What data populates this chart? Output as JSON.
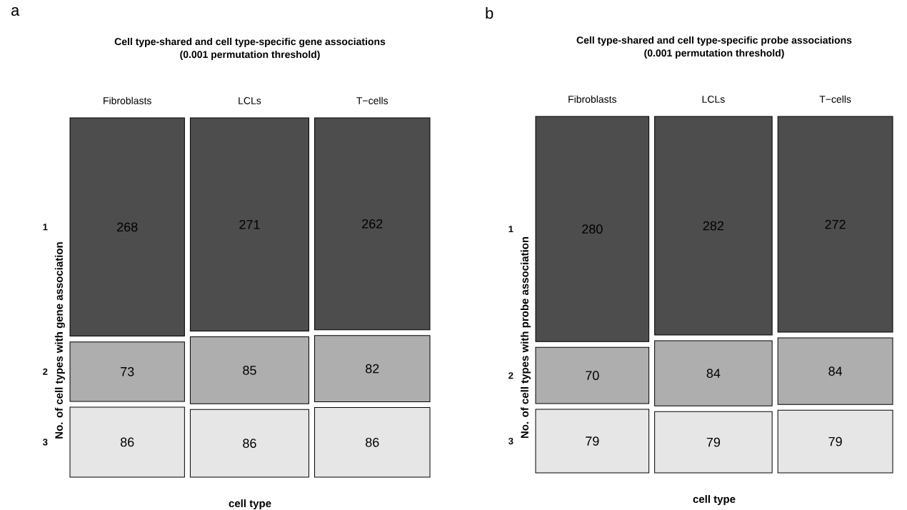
{
  "chart_data": [
    {
      "type": "other",
      "title": "Cell type-shared and cell type-specific gene associations",
      "subtitle": "(0.001 permutation threshold)",
      "xlabel": "cell type",
      "ylabel": "No. of cell types with gene association",
      "annotations": [
        "a"
      ],
      "categories": [
        "Fibroblasts",
        "LCLs",
        "T−cells"
      ],
      "y_categories": [
        "1",
        "2",
        "3"
      ],
      "data_labels": true,
      "series": [
        {
          "color": "#4d4d4d",
          "values": [
            268,
            271,
            262
          ]
        },
        {
          "color": "#aeaeae",
          "values": [
            73,
            85,
            82
          ]
        },
        {
          "color": "#e6e6e6",
          "values": [
            86,
            86,
            86
          ]
        }
      ]
    },
    {
      "type": "other",
      "title": "Cell type-shared and cell type-specific probe associations",
      "subtitle": "(0.001 permutation threshold)",
      "xlabel": "cell type",
      "ylabel": "No. of cell types with probe association",
      "annotations": [
        "b"
      ],
      "categories": [
        "Fibroblasts",
        "LCLs",
        "T−cells"
      ],
      "y_categories": [
        "1",
        "2",
        "3"
      ],
      "data_labels": true,
      "series": [
        {
          "color": "#4d4d4d",
          "values": [
            280,
            282,
            272
          ]
        },
        {
          "color": "#aeaeae",
          "values": [
            70,
            84,
            84
          ]
        },
        {
          "color": "#e6e6e6",
          "values": [
            79,
            79,
            79
          ]
        }
      ]
    }
  ]
}
